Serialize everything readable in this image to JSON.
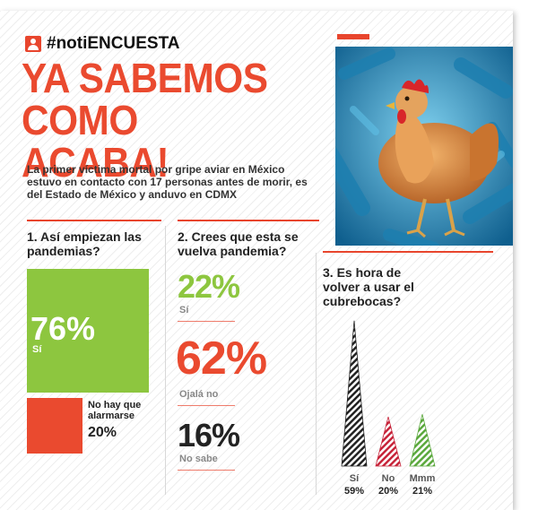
{
  "brand": {
    "icon": "user-icon",
    "text": "#notiENCUESTA"
  },
  "headline": "YA SABEMOS COMO ACABA!",
  "subtitle": "La primer víctima mortal por gripe aviar en México estuvo en contacto con 17 personas antes de morir, es del Estado de México y anduvo en CDMX",
  "colors": {
    "accent": "#ea4a2f",
    "green": "#8dc63f",
    "dark": "#222222"
  },
  "chart_data": [
    {
      "type": "bar",
      "title": "1. Así empiezan las pandemias?",
      "categories": [
        "Sí",
        "No hay que alarmarse"
      ],
      "values": [
        76,
        20
      ],
      "labels": [
        "76%",
        "20%"
      ],
      "colors": [
        "#8dc63f",
        "#ea4a2f"
      ]
    },
    {
      "type": "table",
      "title": "2. Crees que esta se vuelva pandemia?",
      "categories": [
        "Sí",
        "Ojalá no",
        "No sabe"
      ],
      "values": [
        22,
        62,
        16
      ],
      "labels": [
        "22%",
        "62%",
        "16%"
      ],
      "colors": [
        "#8dc63f",
        "#ea4a2f",
        "#222222"
      ]
    },
    {
      "type": "bar",
      "title": "3. Es hora de volver a usar el cubrebocas?",
      "categories": [
        "Sí",
        "No",
        "Mmm"
      ],
      "values": [
        59,
        20,
        21
      ],
      "labels": [
        "59%",
        "20%",
        "21%"
      ],
      "colors": [
        "#222222",
        "#c7243a",
        "#5aa83c"
      ]
    }
  ]
}
